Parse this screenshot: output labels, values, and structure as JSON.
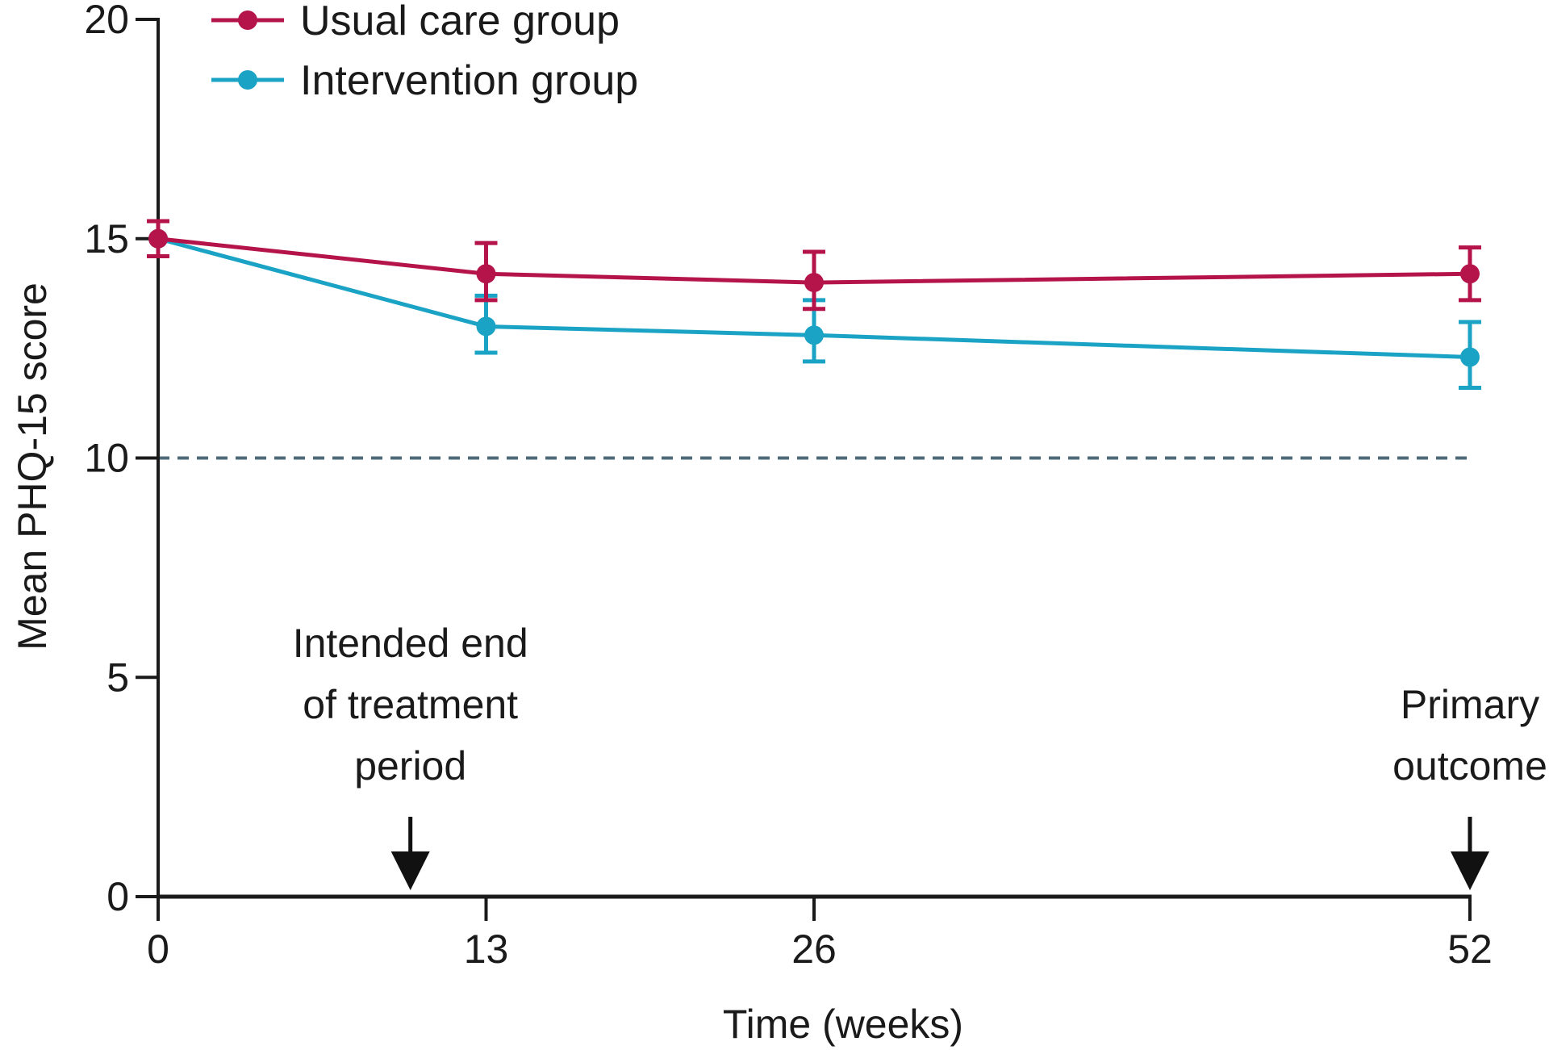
{
  "chart_data": {
    "type": "line",
    "title": "",
    "xlabel": "Time (weeks)",
    "ylabel": "Mean PHQ-15 score",
    "x": [
      0,
      13,
      26,
      52
    ],
    "x_ticks": [
      0,
      13,
      26,
      52
    ],
    "x_tick_labels": [
      "0",
      "13",
      "26",
      "52"
    ],
    "xlim": [
      0,
      52
    ],
    "ylim": [
      0,
      20
    ],
    "y_ticks": [
      0,
      5,
      10,
      15,
      20
    ],
    "y_tick_labels": [
      "0",
      "5",
      "10",
      "15",
      "20"
    ],
    "grid": false,
    "legend_position": "top-left",
    "series": [
      {
        "name": "Usual care group",
        "color": "#b5144b",
        "values": [
          15.0,
          14.2,
          14.0,
          14.2
        ],
        "ci_low": [
          14.6,
          13.6,
          13.4,
          13.6
        ],
        "ci_high": [
          15.4,
          14.9,
          14.7,
          14.8
        ]
      },
      {
        "name": "Intervention group",
        "color": "#1aa3c4",
        "values": [
          15.0,
          13.0,
          12.8,
          12.3
        ],
        "ci_low": [
          14.6,
          12.4,
          12.2,
          11.6
        ],
        "ci_high": [
          15.4,
          13.7,
          13.6,
          13.1
        ]
      }
    ],
    "reference_line": {
      "y": 10,
      "style": "dashed",
      "color": "#4e6a78"
    },
    "annotations": [
      {
        "lines": [
          "Intended end",
          "of treatment",
          "period"
        ],
        "x": 10,
        "marker": "down-arrow"
      },
      {
        "lines": [
          "Primary",
          "outcome"
        ],
        "x": 52,
        "marker": "down-arrow"
      }
    ]
  }
}
